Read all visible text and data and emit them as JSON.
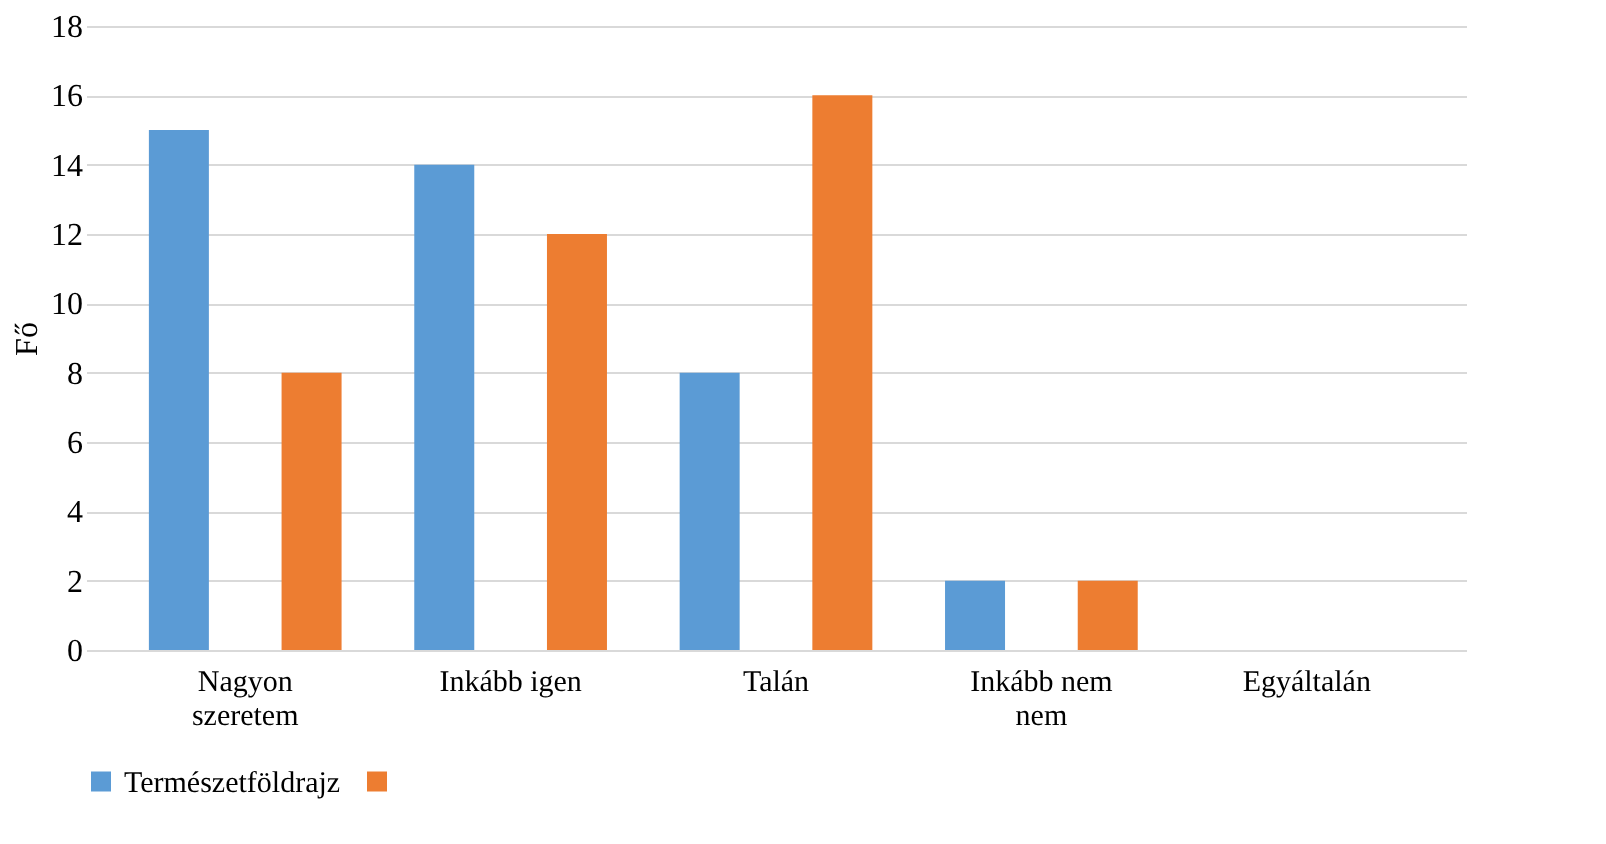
{
  "chart_data": {
    "type": "bar",
    "ylabel": "Fő",
    "categories": [
      "Nagyon\nszeretem",
      "Inkább igen",
      "Talán",
      "Inkább nem\nnem",
      "Egyáltalán"
    ],
    "series": [
      {
        "name": "Természetföldrajz",
        "color": "#5b9bd5",
        "values": [
          15,
          14,
          8,
          2,
          0
        ]
      },
      {
        "color": "#ed7d31",
        "values": [
          8,
          12,
          16,
          2,
          0
        ]
      }
    ],
    "ylim": [
      0,
      18
    ],
    "yticks": [
      0,
      2,
      4,
      6,
      8,
      10,
      12,
      14,
      16,
      18
    ],
    "grid": "y",
    "legend": "bottom"
  }
}
